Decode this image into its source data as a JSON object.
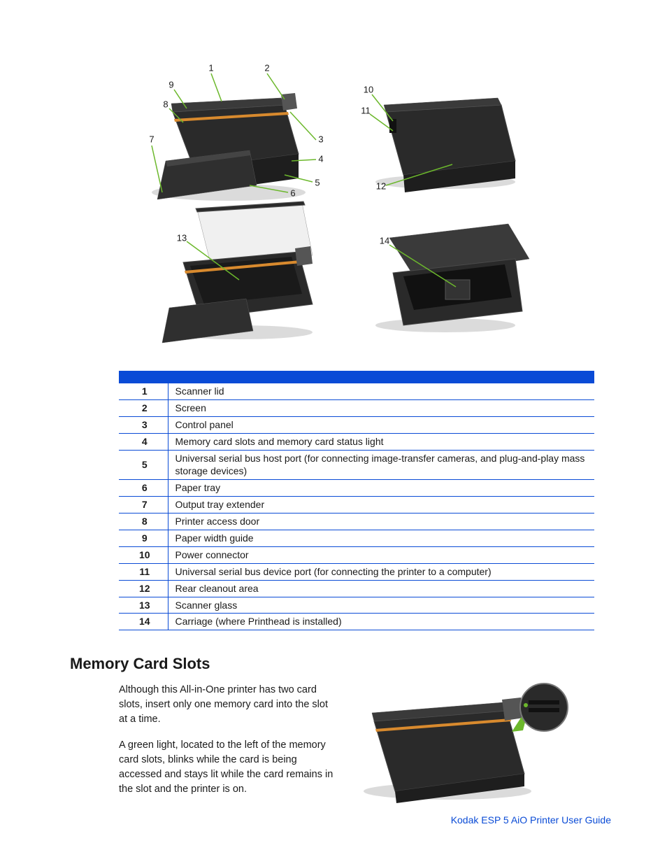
{
  "diagram": {
    "callouts_view1": [
      "1",
      "2",
      "3",
      "4",
      "5",
      "6",
      "7",
      "8",
      "9"
    ],
    "callouts_view2": [
      "10",
      "11",
      "12"
    ],
    "callouts_view3": [
      "13"
    ],
    "callouts_view4": [
      "14"
    ],
    "colors": {
      "body": "#2a2a2a",
      "top": "#3a3a3a",
      "accent": "#d88a2e",
      "callout_line": "#6cb82c",
      "callout_highlight": "#6cb82c",
      "shadow": "#b8b8b8",
      "screen": "#f0f0f0"
    }
  },
  "parts_table": {
    "header_color": "#0a4bd6",
    "border_color": "#0a4bd6",
    "rows": [
      {
        "num": "1",
        "desc": "Scanner lid"
      },
      {
        "num": "2",
        "desc": "Screen"
      },
      {
        "num": "3",
        "desc": "Control panel"
      },
      {
        "num": "4",
        "desc": "Memory card slots and memory card status light"
      },
      {
        "num": "5",
        "desc": "Universal serial bus host port (for connecting image-transfer cameras, and plug-and-play mass storage devices)"
      },
      {
        "num": "6",
        "desc": "Paper tray"
      },
      {
        "num": "7",
        "desc": "Output tray extender"
      },
      {
        "num": "8",
        "desc": "Printer access door"
      },
      {
        "num": "9",
        "desc": "Paper width guide"
      },
      {
        "num": "10",
        "desc": "Power connector"
      },
      {
        "num": "11",
        "desc": "Universal serial bus device port (for connecting the printer to a computer)"
      },
      {
        "num": "12",
        "desc": "Rear cleanout area"
      },
      {
        "num": "13",
        "desc": "Scanner glass"
      },
      {
        "num": "14",
        "desc": "Carriage (where Printhead is installed)"
      }
    ]
  },
  "section": {
    "heading": "Memory Card Slots",
    "para1": "Although this All-in-One printer has two card slots, insert only one memory card into the slot at a time.",
    "para2": "A green light, located to the left of the memory card slots, blinks while the card is being accessed and stays lit while the card remains in the slot and the printer is on."
  },
  "footer": "Kodak ESP 5 AiO Printer User Guide"
}
